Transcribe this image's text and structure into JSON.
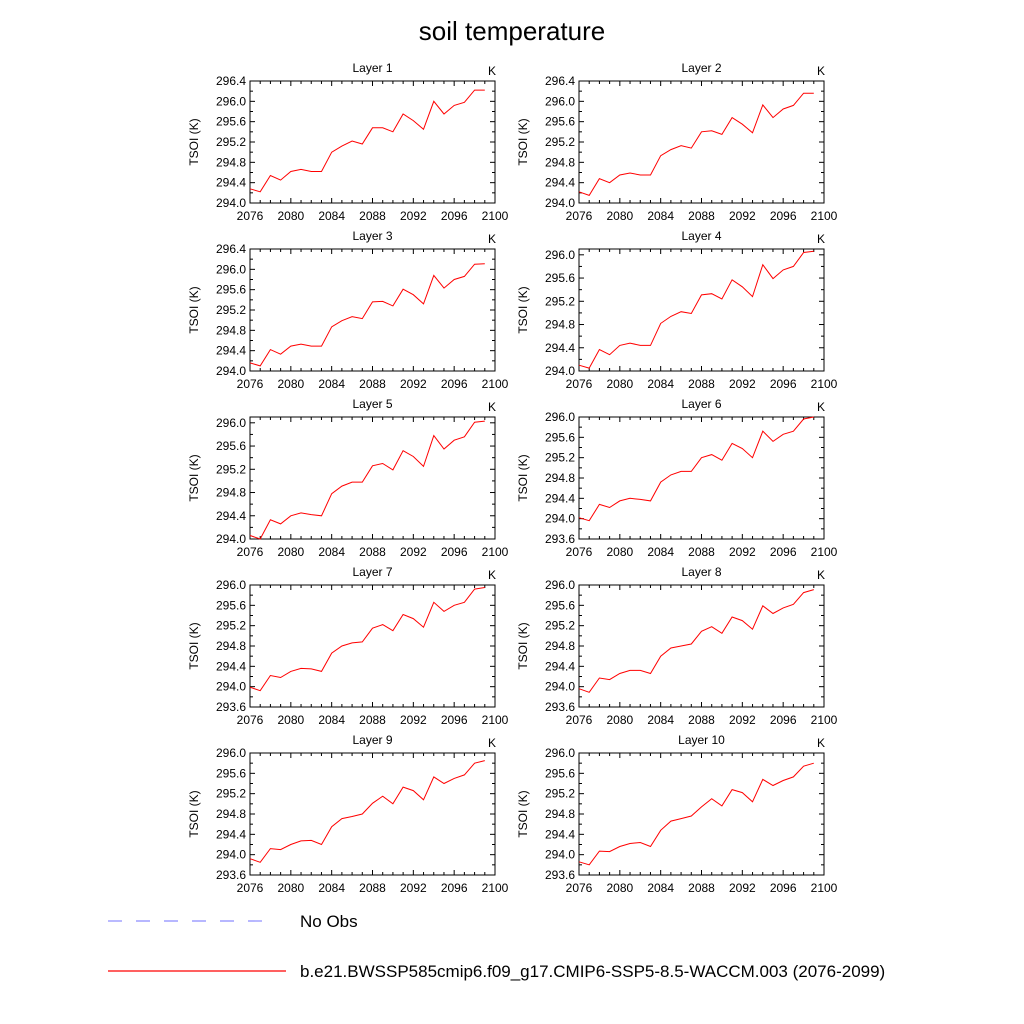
{
  "figure": {
    "title": "soil temperature",
    "legend": [
      {
        "label": "No Obs",
        "color": "#8c8cff",
        "dash": true
      },
      {
        "label": "b.e21.BWSSP585cmip6.f09_g17.CMIP6-SSP5-8.5-WACCM.003 (2076-2099)",
        "color": "#ff0000",
        "dash": false
      }
    ]
  },
  "chart_data": [
    {
      "type": "line",
      "title": "Layer 1",
      "units": "K",
      "ylabel": "TSOI  (K)",
      "xlim": [
        2076,
        2100
      ],
      "ylim": [
        294.0,
        296.4
      ],
      "xticks": [
        "2076",
        "2080",
        "2084",
        "2088",
        "2092",
        "2096",
        "2100"
      ],
      "yticks": [
        "294.0",
        "294.4",
        "294.8",
        "295.2",
        "295.6",
        "296.0",
        "296.4"
      ],
      "color": "#ff0000",
      "x": [
        2076,
        2077,
        2078,
        2079,
        2080,
        2081,
        2082,
        2083,
        2084,
        2085,
        2086,
        2087,
        2088,
        2089,
        2090,
        2091,
        2092,
        2093,
        2094,
        2095,
        2096,
        2097,
        2098,
        2099
      ],
      "values": [
        294.28,
        294.22,
        294.54,
        294.45,
        294.62,
        294.66,
        294.62,
        294.62,
        295.0,
        295.12,
        295.22,
        295.16,
        295.48,
        295.48,
        295.4,
        295.75,
        295.62,
        295.45,
        296.0,
        295.75,
        295.92,
        295.98,
        296.22,
        296.22
      ]
    },
    {
      "type": "line",
      "title": "Layer 2",
      "units": "K",
      "ylabel": "TSOI  (K)",
      "xlim": [
        2076,
        2100
      ],
      "ylim": [
        294.0,
        296.4
      ],
      "xticks": [
        "2076",
        "2080",
        "2084",
        "2088",
        "2092",
        "2096",
        "2100"
      ],
      "yticks": [
        "294.0",
        "294.4",
        "294.8",
        "295.2",
        "295.6",
        "296.0",
        "296.4"
      ],
      "color": "#ff0000",
      "x": [
        2076,
        2077,
        2078,
        2079,
        2080,
        2081,
        2082,
        2083,
        2084,
        2085,
        2086,
        2087,
        2088,
        2089,
        2090,
        2091,
        2092,
        2093,
        2094,
        2095,
        2096,
        2097,
        2098,
        2099
      ],
      "values": [
        294.22,
        294.15,
        294.48,
        294.4,
        294.55,
        294.59,
        294.55,
        294.55,
        294.93,
        295.05,
        295.13,
        295.08,
        295.4,
        295.42,
        295.35,
        295.68,
        295.55,
        295.38,
        295.93,
        295.68,
        295.85,
        295.92,
        296.16,
        296.16
      ]
    },
    {
      "type": "line",
      "title": "Layer 3",
      "units": "K",
      "ylabel": "TSOI  (K)",
      "xlim": [
        2076,
        2100
      ],
      "ylim": [
        294.0,
        296.4
      ],
      "xticks": [
        "2076",
        "2080",
        "2084",
        "2088",
        "2092",
        "2096",
        "2100"
      ],
      "yticks": [
        "294.0",
        "294.4",
        "294.8",
        "295.2",
        "295.6",
        "296.0",
        "296.4"
      ],
      "color": "#ff0000",
      "x": [
        2076,
        2077,
        2078,
        2079,
        2080,
        2081,
        2082,
        2083,
        2084,
        2085,
        2086,
        2087,
        2088,
        2089,
        2090,
        2091,
        2092,
        2093,
        2094,
        2095,
        2096,
        2097,
        2098,
        2099
      ],
      "values": [
        294.16,
        294.1,
        294.42,
        294.33,
        294.49,
        294.53,
        294.49,
        294.49,
        294.87,
        294.99,
        295.07,
        295.03,
        295.36,
        295.37,
        295.28,
        295.61,
        295.5,
        295.32,
        295.88,
        295.63,
        295.8,
        295.86,
        296.1,
        296.11
      ]
    },
    {
      "type": "line",
      "title": "Layer 4",
      "units": "K",
      "ylabel": "TSOI  (K)",
      "xlim": [
        2076,
        2100
      ],
      "ylim": [
        294.0,
        296.1
      ],
      "xticks": [
        "2076",
        "2080",
        "2084",
        "2088",
        "2092",
        "2096",
        "2100"
      ],
      "yticks": [
        "294.0",
        "294.4",
        "294.8",
        "295.2",
        "295.6",
        "296.0"
      ],
      "color": "#ff0000",
      "x": [
        2076,
        2077,
        2078,
        2079,
        2080,
        2081,
        2082,
        2083,
        2084,
        2085,
        2086,
        2087,
        2088,
        2089,
        2090,
        2091,
        2092,
        2093,
        2094,
        2095,
        2096,
        2097,
        2098,
        2099
      ],
      "values": [
        294.1,
        294.05,
        294.37,
        294.28,
        294.44,
        294.48,
        294.44,
        294.44,
        294.82,
        294.94,
        295.02,
        294.99,
        295.31,
        295.33,
        295.24,
        295.57,
        295.45,
        295.28,
        295.83,
        295.59,
        295.74,
        295.8,
        296.04,
        296.06
      ]
    },
    {
      "type": "line",
      "title": "Layer 5",
      "units": "K",
      "ylabel": "TSOI  (K)",
      "xlim": [
        2076,
        2100
      ],
      "ylim": [
        294.0,
        296.1
      ],
      "xticks": [
        "2076",
        "2080",
        "2084",
        "2088",
        "2092",
        "2096",
        "2100"
      ],
      "yticks": [
        "294.0",
        "294.4",
        "294.8",
        "295.2",
        "295.6",
        "296.0"
      ],
      "color": "#ff0000",
      "x": [
        2076,
        2077,
        2078,
        2079,
        2080,
        2081,
        2082,
        2083,
        2084,
        2085,
        2086,
        2087,
        2088,
        2089,
        2090,
        2091,
        2092,
        2093,
        2094,
        2095,
        2096,
        2097,
        2098,
        2099
      ],
      "values": [
        294.06,
        294.0,
        294.33,
        294.26,
        294.4,
        294.45,
        294.42,
        294.4,
        294.78,
        294.91,
        294.98,
        294.98,
        295.26,
        295.3,
        295.19,
        295.52,
        295.42,
        295.25,
        295.78,
        295.55,
        295.7,
        295.76,
        296.01,
        296.03
      ]
    },
    {
      "type": "line",
      "title": "Layer 6",
      "units": "K",
      "ylabel": "TSOI  (K)",
      "xlim": [
        2076,
        2100
      ],
      "ylim": [
        293.6,
        296.0
      ],
      "xticks": [
        "2076",
        "2080",
        "2084",
        "2088",
        "2092",
        "2096",
        "2100"
      ],
      "yticks": [
        "293.6",
        "294.0",
        "294.4",
        "294.8",
        "295.2",
        "295.6",
        "296.0"
      ],
      "color": "#ff0000",
      "x": [
        2076,
        2077,
        2078,
        2079,
        2080,
        2081,
        2082,
        2083,
        2084,
        2085,
        2086,
        2087,
        2088,
        2089,
        2090,
        2091,
        2092,
        2093,
        2094,
        2095,
        2096,
        2097,
        2098,
        2099
      ],
      "values": [
        294.02,
        293.96,
        294.28,
        294.22,
        294.35,
        294.4,
        294.38,
        294.35,
        294.72,
        294.86,
        294.93,
        294.93,
        295.2,
        295.26,
        295.15,
        295.48,
        295.38,
        295.2,
        295.72,
        295.52,
        295.66,
        295.72,
        295.96,
        296.0
      ]
    },
    {
      "type": "line",
      "title": "Layer 7",
      "units": "K",
      "ylabel": "TSOI  (K)",
      "xlim": [
        2076,
        2100
      ],
      "ylim": [
        293.6,
        296.0
      ],
      "xticks": [
        "2076",
        "2080",
        "2084",
        "2088",
        "2092",
        "2096",
        "2100"
      ],
      "yticks": [
        "293.6",
        "294.0",
        "294.4",
        "294.8",
        "295.2",
        "295.6",
        "296.0"
      ],
      "color": "#ff0000",
      "x": [
        2076,
        2077,
        2078,
        2079,
        2080,
        2081,
        2082,
        2083,
        2084,
        2085,
        2086,
        2087,
        2088,
        2089,
        2090,
        2091,
        2092,
        2093,
        2094,
        2095,
        2096,
        2097,
        2098,
        2099
      ],
      "values": [
        293.99,
        293.92,
        294.22,
        294.18,
        294.3,
        294.36,
        294.35,
        294.3,
        294.66,
        294.8,
        294.86,
        294.88,
        295.15,
        295.22,
        295.1,
        295.42,
        295.34,
        295.17,
        295.66,
        295.48,
        295.6,
        295.66,
        295.92,
        295.95
      ]
    },
    {
      "type": "line",
      "title": "Layer 8",
      "units": "K",
      "ylabel": "TSOI  (K)",
      "xlim": [
        2076,
        2100
      ],
      "ylim": [
        293.6,
        296.0
      ],
      "xticks": [
        "2076",
        "2080",
        "2084",
        "2088",
        "2092",
        "2096",
        "2100"
      ],
      "yticks": [
        "293.6",
        "294.0",
        "294.4",
        "294.8",
        "295.2",
        "295.6",
        "296.0"
      ],
      "color": "#ff0000",
      "x": [
        2076,
        2077,
        2078,
        2079,
        2080,
        2081,
        2082,
        2083,
        2084,
        2085,
        2086,
        2087,
        2088,
        2089,
        2090,
        2091,
        2092,
        2093,
        2094,
        2095,
        2096,
        2097,
        2098,
        2099
      ],
      "values": [
        293.96,
        293.89,
        294.17,
        294.14,
        294.26,
        294.32,
        294.32,
        294.26,
        294.6,
        294.76,
        294.8,
        294.84,
        295.09,
        295.18,
        295.05,
        295.37,
        295.3,
        295.13,
        295.59,
        295.44,
        295.55,
        295.62,
        295.85,
        295.91
      ]
    },
    {
      "type": "line",
      "title": "Layer 9",
      "units": "K",
      "ylabel": "TSOI  (K)",
      "xlim": [
        2076,
        2100
      ],
      "ylim": [
        293.6,
        296.0
      ],
      "xticks": [
        "2076",
        "2080",
        "2084",
        "2088",
        "2092",
        "2096",
        "2100"
      ],
      "yticks": [
        "293.6",
        "294.0",
        "294.4",
        "294.8",
        "295.2",
        "295.6",
        "296.0"
      ],
      "color": "#ff0000",
      "x": [
        2076,
        2077,
        2078,
        2079,
        2080,
        2081,
        2082,
        2083,
        2084,
        2085,
        2086,
        2087,
        2088,
        2089,
        2090,
        2091,
        2092,
        2093,
        2094,
        2095,
        2096,
        2097,
        2098,
        2099
      ],
      "values": [
        293.92,
        293.85,
        294.12,
        294.1,
        294.2,
        294.27,
        294.28,
        294.2,
        294.55,
        294.71,
        294.75,
        294.8,
        295.01,
        295.15,
        295.0,
        295.33,
        295.26,
        295.08,
        295.53,
        295.4,
        295.5,
        295.57,
        295.8,
        295.85
      ]
    },
    {
      "type": "line",
      "title": "Layer 10",
      "units": "K",
      "ylabel": "TSOI  (K)",
      "xlim": [
        2076,
        2100
      ],
      "ylim": [
        293.6,
        296.0
      ],
      "xticks": [
        "2076",
        "2080",
        "2084",
        "2088",
        "2092",
        "2096",
        "2100"
      ],
      "yticks": [
        "293.6",
        "294.0",
        "294.4",
        "294.8",
        "295.2",
        "295.6",
        "296.0"
      ],
      "color": "#ff0000",
      "x": [
        2076,
        2077,
        2078,
        2079,
        2080,
        2081,
        2082,
        2083,
        2084,
        2085,
        2086,
        2087,
        2088,
        2089,
        2090,
        2091,
        2092,
        2093,
        2094,
        2095,
        2096,
        2097,
        2098,
        2099
      ],
      "values": [
        293.86,
        293.8,
        294.07,
        294.06,
        294.16,
        294.22,
        294.24,
        294.16,
        294.48,
        294.66,
        294.71,
        294.76,
        294.94,
        295.1,
        294.96,
        295.28,
        295.22,
        295.04,
        295.48,
        295.36,
        295.46,
        295.53,
        295.74,
        295.8
      ]
    }
  ]
}
